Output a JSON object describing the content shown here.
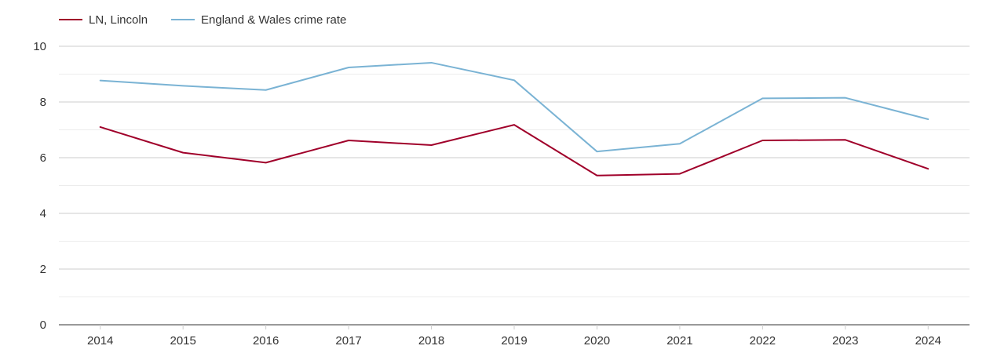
{
  "chart_data": {
    "type": "line",
    "title": "",
    "xlabel": "",
    "ylabel": "",
    "categories": [
      "2014",
      "2015",
      "2016",
      "2017",
      "2018",
      "2019",
      "2020",
      "2021",
      "2022",
      "2023",
      "2024"
    ],
    "ylim": [
      0,
      10
    ],
    "yticks": [
      "0",
      "2",
      "4",
      "6",
      "8",
      "10"
    ],
    "grid": true,
    "legend_position": "top-left",
    "series": [
      {
        "name": "LN, Lincoln",
        "color": "#a0002a",
        "values": [
          7.1,
          6.18,
          5.82,
          6.62,
          6.45,
          7.18,
          5.36,
          5.42,
          6.62,
          6.64,
          5.6
        ]
      },
      {
        "name": "England & Wales crime rate",
        "color": "#7ab3d4",
        "values": [
          8.77,
          8.58,
          8.43,
          9.24,
          9.41,
          8.78,
          6.22,
          6.5,
          8.13,
          8.15,
          7.38
        ]
      }
    ]
  }
}
